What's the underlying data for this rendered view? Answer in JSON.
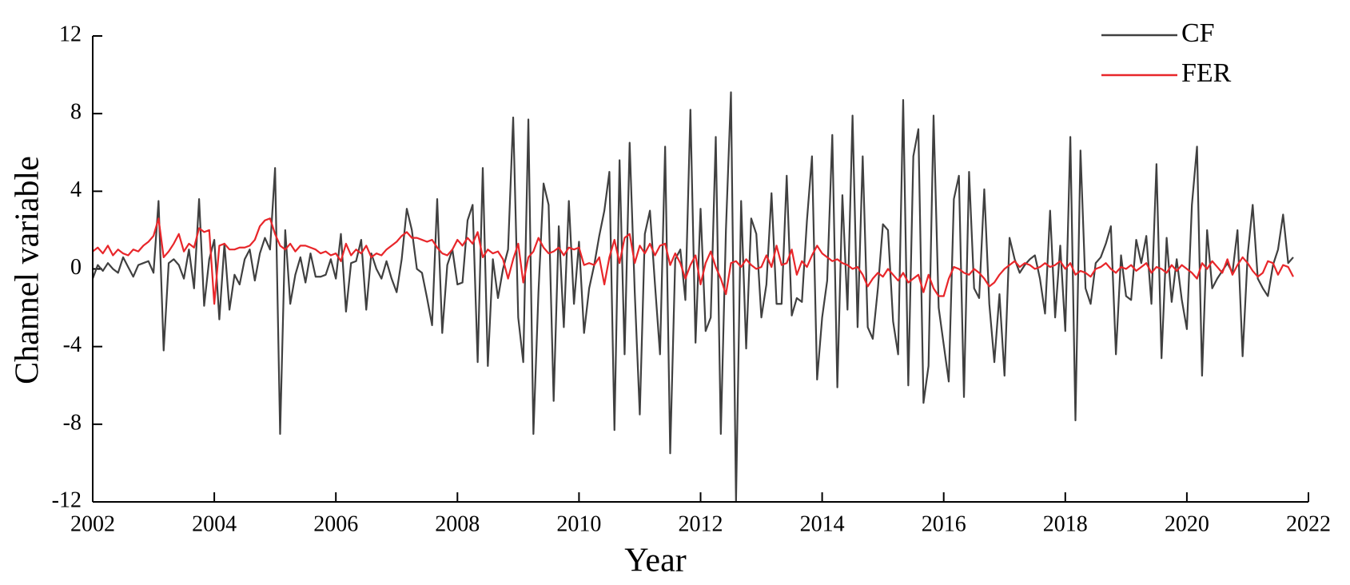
{
  "chart_data": {
    "type": "line",
    "xlabel": "Year",
    "ylabel": "Channel variable",
    "xlim": [
      2002,
      2022
    ],
    "xticks": [
      2002,
      2004,
      2006,
      2008,
      2010,
      2012,
      2014,
      2016,
      2018,
      2020,
      2022
    ],
    "ylim": [
      -12,
      12
    ],
    "yticks": [
      -12,
      -8,
      -4,
      0,
      4,
      8,
      12
    ],
    "grid": false,
    "legend": "upper right",
    "x": [
      2002,
      2002.083,
      2002.167,
      2002.25,
      2002.333,
      2002.417,
      2002.5,
      2002.583,
      2002.667,
      2002.75,
      2002.833,
      2002.917,
      2003,
      2003.083,
      2003.167,
      2003.25,
      2003.333,
      2003.417,
      2003.5,
      2003.583,
      2003.667,
      2003.75,
      2003.833,
      2003.917,
      2004,
      2004.083,
      2004.167,
      2004.25,
      2004.333,
      2004.417,
      2004.5,
      2004.583,
      2004.667,
      2004.75,
      2004.833,
      2004.917,
      2005,
      2005.083,
      2005.167,
      2005.25,
      2005.333,
      2005.417,
      2005.5,
      2005.583,
      2005.667,
      2005.75,
      2005.833,
      2005.917,
      2006,
      2006.083,
      2006.167,
      2006.25,
      2006.333,
      2006.417,
      2006.5,
      2006.583,
      2006.667,
      2006.75,
      2006.833,
      2006.917,
      2007,
      2007.083,
      2007.167,
      2007.25,
      2007.333,
      2007.417,
      2007.5,
      2007.583,
      2007.667,
      2007.75,
      2007.833,
      2007.917,
      2008,
      2008.083,
      2008.167,
      2008.25,
      2008.333,
      2008.417,
      2008.5,
      2008.583,
      2008.667,
      2008.75,
      2008.833,
      2008.917,
      2009,
      2009.083,
      2009.167,
      2009.25,
      2009.333,
      2009.417,
      2009.5,
      2009.583,
      2009.667,
      2009.75,
      2009.833,
      2009.917,
      2010,
      2010.083,
      2010.167,
      2010.25,
      2010.333,
      2010.417,
      2010.5,
      2010.583,
      2010.667,
      2010.75,
      2010.833,
      2010.917,
      2011,
      2011.083,
      2011.167,
      2011.25,
      2011.333,
      2011.417,
      2011.5,
      2011.583,
      2011.667,
      2011.75,
      2011.833,
      2011.917,
      2012,
      2012.083,
      2012.167,
      2012.25,
      2012.333,
      2012.417,
      2012.5,
      2012.583,
      2012.667,
      2012.75,
      2012.833,
      2012.917,
      2013,
      2013.083,
      2013.167,
      2013.25,
      2013.333,
      2013.417,
      2013.5,
      2013.583,
      2013.667,
      2013.75,
      2013.833,
      2013.917,
      2014,
      2014.083,
      2014.167,
      2014.25,
      2014.333,
      2014.417,
      2014.5,
      2014.583,
      2014.667,
      2014.75,
      2014.833,
      2014.917,
      2015,
      2015.083,
      2015.167,
      2015.25,
      2015.333,
      2015.417,
      2015.5,
      2015.583,
      2015.667,
      2015.75,
      2015.833,
      2015.917,
      2016,
      2016.083,
      2016.167,
      2016.25,
      2016.333,
      2016.417,
      2016.5,
      2016.583,
      2016.667,
      2016.75,
      2016.833,
      2016.917,
      2017,
      2017.083,
      2017.167,
      2017.25,
      2017.333,
      2017.417,
      2017.5,
      2017.583,
      2017.667,
      2017.75,
      2017.833,
      2017.917,
      2018,
      2018.083,
      2018.167,
      2018.25,
      2018.333,
      2018.417,
      2018.5,
      2018.583,
      2018.667,
      2018.75,
      2018.833,
      2018.917,
      2019,
      2019.083,
      2019.167,
      2019.25,
      2019.333,
      2019.417,
      2019.5,
      2019.583,
      2019.667,
      2019.75,
      2019.833,
      2019.917,
      2020,
      2020.083,
      2020.167,
      2020.25,
      2020.333,
      2020.417,
      2020.5,
      2020.583,
      2020.667,
      2020.75,
      2020.833,
      2020.917,
      2021,
      2021.083,
      2021.167,
      2021.25,
      2021.333,
      2021.417,
      2021.5,
      2021.583,
      2021.667,
      2021.75
    ],
    "series": [
      {
        "name": "CF",
        "color": "#404040",
        "values": [
          -0.5,
          0.2,
          -0.1,
          0.3,
          0,
          -0.2,
          0.6,
          0.1,
          -0.4,
          0.2,
          0.3,
          0.4,
          -0.2,
          3.5,
          -4.2,
          0.3,
          0.5,
          0.2,
          -0.5,
          1.0,
          -1.0,
          3.6,
          -1.9,
          0.5,
          1.5,
          -2.6,
          1.3,
          -2.1,
          -0.3,
          -0.8,
          0.5,
          1.0,
          -0.6,
          0.8,
          1.6,
          1.0,
          5.2,
          -8.5,
          2.0,
          -1.8,
          -0.3,
          0.6,
          -0.7,
          0.8,
          -0.4,
          -0.4,
          -0.3,
          0.5,
          -0.5,
          1.8,
          -2.2,
          0.3,
          0.4,
          1.5,
          -2.1,
          0.8,
          0.0,
          -0.5,
          0.4,
          -0.5,
          -1.2,
          0.5,
          3.1,
          2.0,
          0,
          -0.2,
          -1.5,
          -2.9,
          3.6,
          -3.3,
          0.2,
          1.0,
          -0.8,
          -0.7,
          2.5,
          3.3,
          -4.8,
          5.2,
          -5.0,
          0.5,
          -1.5,
          0.0,
          1.0,
          7.8,
          -2.5,
          -4.8,
          7.7,
          -8.5,
          -1.2,
          4.4,
          3.3,
          -6.8,
          2.2,
          -3.0,
          3.5,
          -1.8,
          1.4,
          -3.3,
          -1.0,
          0.2,
          1.7,
          3.0,
          5.0,
          -8.3,
          5.6,
          -4.4,
          6.5,
          -1.2,
          -7.5,
          1.8,
          3.0,
          -0.8,
          -4.4,
          6.3,
          -9.5,
          0.5,
          1.0,
          -1.6,
          8.2,
          -3.8,
          3.1,
          -3.2,
          -2.5,
          6.8,
          -8.5,
          2.0,
          9.1,
          -12,
          3.5,
          -4.1,
          2.6,
          1.8,
          -2.5,
          -0.8,
          3.9,
          -1.8,
          -1.8,
          4.8,
          -2.4,
          -1.5,
          -1.7,
          2.5,
          5.8,
          -5.7,
          -2.5,
          -0.6,
          6.9,
          -6.1,
          3.8,
          -2.1,
          7.9,
          -3.0,
          5.8,
          -3.0,
          -3.6,
          -1.0,
          2.3,
          2.0,
          -2.7,
          -4.4,
          8.7,
          -6.0,
          5.8,
          7.2,
          -6.9,
          -5.0,
          7.9,
          -2.0,
          -3.9,
          -5.8,
          3.6,
          4.8,
          -6.6,
          5.0,
          -1.0,
          -1.5,
          4.1,
          -1.8,
          -4.8,
          -1.3,
          -5.5,
          1.6,
          0.5,
          -0.2,
          0.2,
          0.5,
          0.7,
          -0.5,
          -2.3,
          3.0,
          -2.5,
          1.2,
          -3.2,
          6.8,
          -7.8,
          6.1,
          -1.0,
          -1.8,
          0.3,
          0.6,
          1.3,
          2.2,
          -4.4,
          0.7,
          -1.4,
          -1.6,
          1.5,
          0.3,
          1.7,
          -1.8,
          5.4,
          -4.6,
          1.6,
          -1.7,
          0.5,
          -1.6,
          -3.1,
          3.3,
          6.3,
          -5.5,
          2.0,
          -1.0,
          -0.5,
          -0.1,
          0.3,
          -0.2,
          2.0,
          -4.5,
          0.7,
          3.3,
          -0.5,
          -1.0,
          -1.4,
          0.2,
          1.0,
          2.8,
          0.3,
          0.6
        ]
      },
      {
        "name": "FER",
        "color": "#e8262a",
        "values": [
          0.9,
          1.1,
          0.8,
          1.2,
          0.7,
          1.0,
          0.8,
          0.7,
          1.0,
          0.9,
          1.2,
          1.4,
          1.7,
          2.6,
          0.6,
          0.9,
          1.3,
          1.8,
          0.9,
          1.3,
          1.1,
          2.1,
          1.9,
          2.0,
          -1.8,
          1.2,
          1.3,
          1.0,
          1.0,
          1.1,
          1.1,
          1.2,
          1.5,
          2.2,
          2.5,
          2.6,
          1.8,
          1.2,
          1.0,
          1.3,
          0.9,
          1.2,
          1.2,
          1.1,
          1.0,
          0.8,
          0.9,
          0.7,
          0.8,
          0.4,
          1.3,
          0.7,
          1.0,
          0.8,
          1.2,
          0.6,
          0.8,
          0.7,
          1.0,
          1.2,
          1.4,
          1.7,
          1.9,
          1.6,
          1.6,
          1.5,
          1.4,
          1.5,
          1.1,
          0.8,
          0.7,
          1.0,
          1.5,
          1.2,
          1.6,
          1.3,
          1.9,
          0.6,
          1.0,
          0.8,
          0.9,
          0.5,
          -0.5,
          0.5,
          1.3,
          -0.7,
          0.6,
          0.9,
          1.6,
          1.1,
          0.8,
          0.9,
          1.1,
          0.7,
          1.1,
          1.0,
          1.1,
          0.2,
          0.3,
          0.2,
          0.6,
          -0.8,
          0.6,
          1.5,
          0.3,
          1.6,
          1.8,
          0.3,
          1.2,
          0.8,
          1.3,
          0.7,
          1.2,
          1.3,
          0.2,
          0.8,
          0.3,
          -0.5,
          0.2,
          0.7,
          -0.8,
          0.3,
          0.9,
          0.1,
          -0.5,
          -1.3,
          0.3,
          0.4,
          0.1,
          0.5,
          0.2,
          0.0,
          0.1,
          0.7,
          0.1,
          1.2,
          0.2,
          0.3,
          1.0,
          -0.3,
          0.4,
          0.1,
          0.7,
          1.2,
          0.8,
          0.6,
          0.4,
          0.5,
          0.3,
          0.2,
          0.0,
          0.1,
          -0.3,
          -0.9,
          -0.5,
          -0.2,
          -0.4,
          0.0,
          -0.3,
          -0.6,
          -0.2,
          -0.7,
          -0.5,
          -0.3,
          -1.2,
          -0.3,
          -1.0,
          -1.4,
          -1.4,
          -0.5,
          0.1,
          0.0,
          -0.2,
          -0.3,
          0.0,
          -0.2,
          -0.5,
          -0.9,
          -0.7,
          -0.3,
          0.0,
          0.2,
          0.4,
          0.1,
          0.3,
          0.2,
          0.0,
          0.1,
          0.3,
          0.1,
          0.2,
          0.4,
          0.0,
          0.3,
          -0.3,
          -0.1,
          -0.2,
          -0.4,
          0.0,
          0.1,
          0.3,
          0.0,
          -0.2,
          0.1,
          0.0,
          0.2,
          -0.1,
          0.1,
          0.3,
          -0.2,
          0.1,
          0.0,
          -0.2,
          0.2,
          -0.1,
          0.2,
          0.0,
          -0.2,
          -0.5,
          0.3,
          0.0,
          0.4,
          0.1,
          -0.2,
          0.5,
          -0.3,
          0.2,
          0.6,
          0.3,
          -0.1,
          -0.4,
          -0.2,
          0.4,
          0.3,
          -0.3,
          0.2,
          0.1,
          -0.4
        ]
      }
    ]
  }
}
